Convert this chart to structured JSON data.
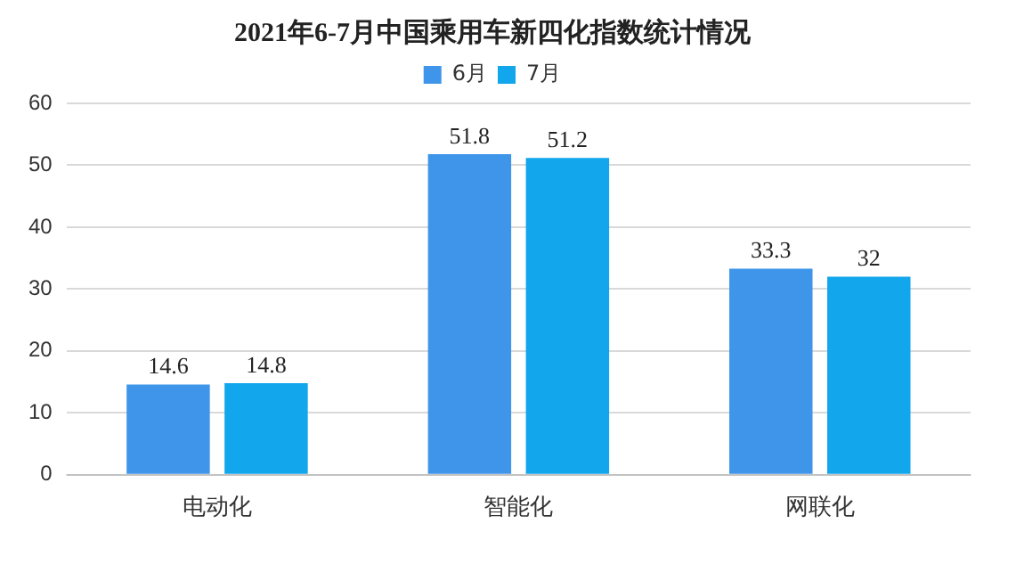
{
  "chart_data": {
    "type": "bar",
    "title": "2021年6-7月中国乘用车新四化指数统计情况",
    "categories": [
      "电动化",
      "智能化",
      "网联化"
    ],
    "series": [
      {
        "name": "6月",
        "color": "#3f95ea",
        "values": [
          14.6,
          51.8,
          33.3
        ]
      },
      {
        "name": "7月",
        "color": "#12a6ec",
        "values": [
          14.8,
          51.2,
          32
        ]
      }
    ],
    "ylim": [
      0,
      60
    ],
    "yticks": [
      0,
      10,
      20,
      30,
      40,
      50,
      60
    ],
    "grid": "y",
    "legend": "top",
    "data_labels": true
  }
}
